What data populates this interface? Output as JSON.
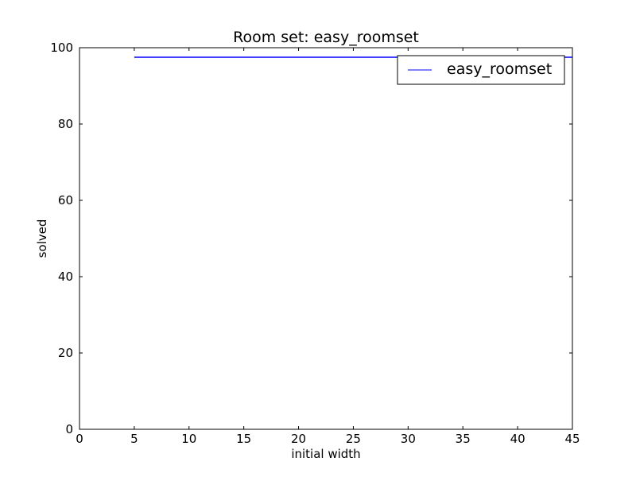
{
  "chart_data": {
    "type": "line",
    "title": "Room set: easy_roomset",
    "xlabel": "initial width",
    "ylabel": "solved",
    "xlim": [
      0,
      45
    ],
    "ylim": [
      0,
      100
    ],
    "xticks": [
      0,
      5,
      10,
      15,
      20,
      25,
      30,
      35,
      40,
      45
    ],
    "yticks": [
      0,
      20,
      40,
      60,
      80,
      100
    ],
    "grid": false,
    "legend_position": "top-right",
    "series": [
      {
        "name": "easy_roomset",
        "color": "#0000ff",
        "x": [
          5,
          10,
          15,
          20,
          25,
          30,
          35,
          40,
          45
        ],
        "y": [
          97.5,
          97.5,
          97.5,
          97.5,
          97.5,
          97.5,
          97.5,
          97.5,
          97.5
        ]
      }
    ]
  }
}
